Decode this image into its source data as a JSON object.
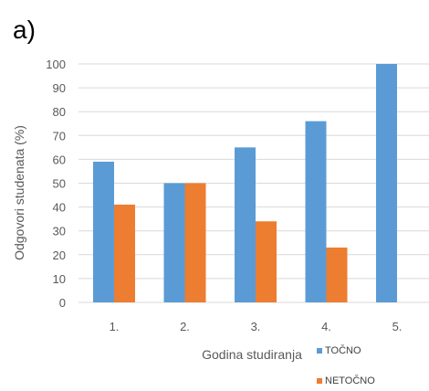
{
  "panel_label": "a)",
  "colors": {
    "series1": "#5b9bd5",
    "series2": "#ed7d31",
    "grid": "#d9d9d9",
    "axis_text": "#595959"
  },
  "chart_data": {
    "type": "bar",
    "title": "",
    "xlabel": "Godina studiranja",
    "ylabel": "Odgovori studenata (%)",
    "categories": [
      "1.",
      "2.",
      "3.",
      "4.",
      "5."
    ],
    "series": [
      {
        "name": "TOČNO",
        "values": [
          59,
          50,
          65,
          76,
          100
        ]
      },
      {
        "name": "NETOČNO",
        "values": [
          41,
          50,
          34,
          23,
          0
        ]
      }
    ],
    "ylim": [
      0,
      100
    ],
    "yticks": [
      0,
      10,
      20,
      30,
      40,
      50,
      60,
      70,
      80,
      90,
      100
    ],
    "grid": true,
    "legend_position": "bottom-right"
  }
}
